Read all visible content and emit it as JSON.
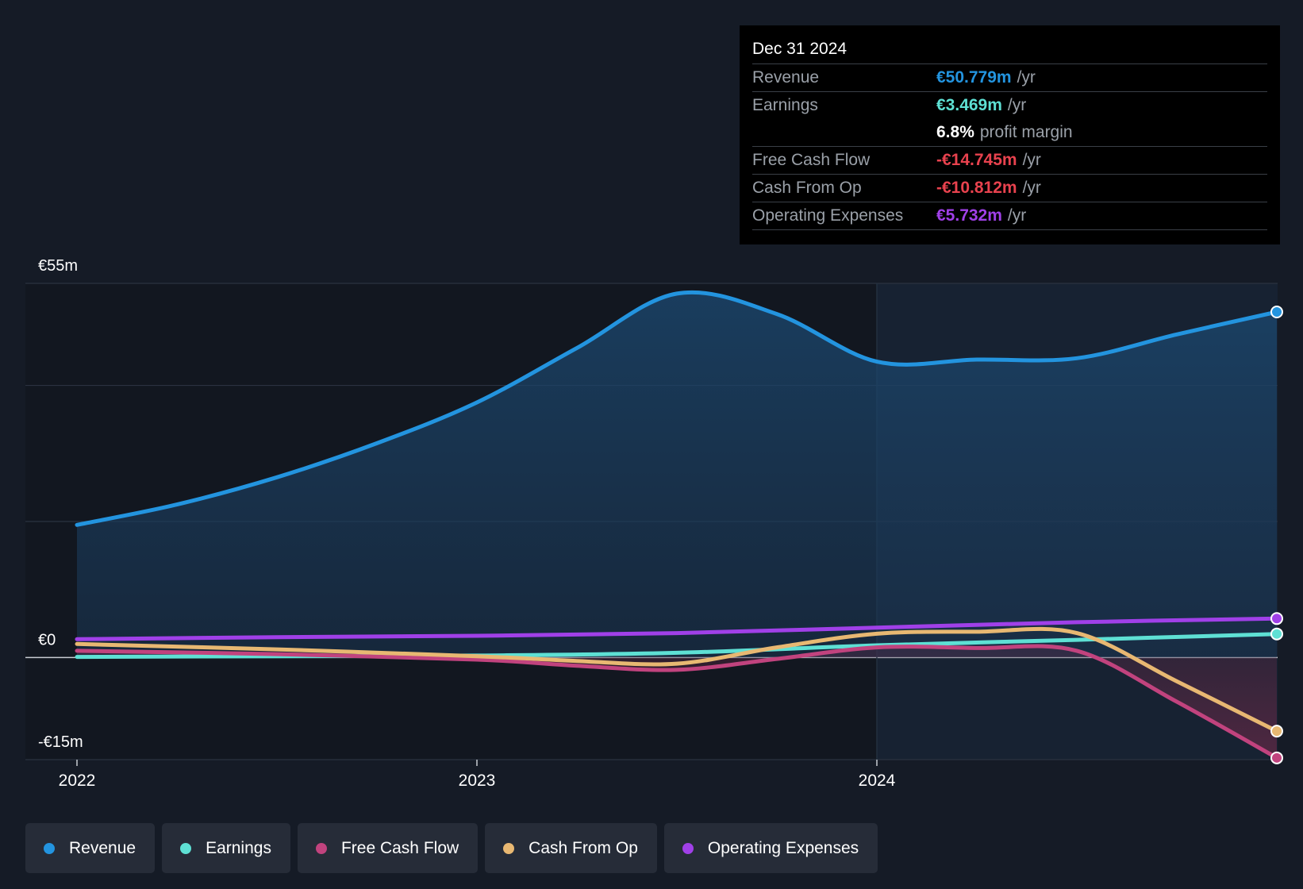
{
  "chart_data": {
    "type": "line",
    "x_ticks": [
      "2022",
      "2023",
      "2024"
    ],
    "x_range": [
      2022.0,
      2025.0
    ],
    "y_tick_labels": [
      {
        "value": 55,
        "label": "€55m"
      },
      {
        "value": 0,
        "label": "€0"
      },
      {
        "value": -15,
        "label": "-€15m"
      }
    ],
    "ylim": [
      -15,
      55
    ],
    "gridlines": [
      55,
      40,
      20,
      0,
      -15
    ],
    "forecast_start": 2024.0,
    "series": [
      {
        "name": "Revenue",
        "color": "#2394df",
        "fill": true,
        "points": [
          [
            2022.0,
            19.5
          ],
          [
            2022.25,
            22.5
          ],
          [
            2022.5,
            26.5
          ],
          [
            2022.75,
            31.5
          ],
          [
            2023.0,
            37.5
          ],
          [
            2023.25,
            45.5
          ],
          [
            2023.5,
            53.5
          ],
          [
            2023.75,
            50.5
          ],
          [
            2024.0,
            43.5
          ],
          [
            2024.25,
            43.8
          ],
          [
            2024.5,
            44.0
          ],
          [
            2024.75,
            47.5
          ],
          [
            2025.0,
            50.8
          ]
        ]
      },
      {
        "name": "Earnings",
        "color": "#5ee0d4",
        "points": [
          [
            2022.0,
            0.1
          ],
          [
            2022.5,
            0.2
          ],
          [
            2023.0,
            0.3
          ],
          [
            2023.5,
            0.7
          ],
          [
            2024.0,
            1.8
          ],
          [
            2024.5,
            2.6
          ],
          [
            2025.0,
            3.469
          ]
        ]
      },
      {
        "name": "Free Cash Flow",
        "color": "#c1437e",
        "points": [
          [
            2022.0,
            1.0
          ],
          [
            2022.5,
            0.5
          ],
          [
            2023.0,
            -0.3
          ],
          [
            2023.25,
            -1.2
          ],
          [
            2023.5,
            -1.8
          ],
          [
            2023.75,
            -0.2
          ],
          [
            2024.0,
            1.5
          ],
          [
            2024.25,
            1.4
          ],
          [
            2024.5,
            1.0
          ],
          [
            2024.75,
            -6.5
          ],
          [
            2025.0,
            -14.745
          ]
        ]
      },
      {
        "name": "Cash From Op",
        "color": "#e8b872",
        "points": [
          [
            2022.0,
            2.0
          ],
          [
            2022.5,
            1.2
          ],
          [
            2023.0,
            0.2
          ],
          [
            2023.25,
            -0.5
          ],
          [
            2023.5,
            -0.9
          ],
          [
            2023.75,
            1.5
          ],
          [
            2024.0,
            3.5
          ],
          [
            2024.25,
            3.8
          ],
          [
            2024.5,
            3.6
          ],
          [
            2024.75,
            -3.5
          ],
          [
            2025.0,
            -10.812
          ]
        ]
      },
      {
        "name": "Operating Expenses",
        "color": "#a040e8",
        "points": [
          [
            2022.0,
            2.7
          ],
          [
            2022.5,
            3.0
          ],
          [
            2023.0,
            3.2
          ],
          [
            2023.5,
            3.6
          ],
          [
            2024.0,
            4.4
          ],
          [
            2024.5,
            5.2
          ],
          [
            2025.0,
            5.732
          ]
        ]
      }
    ]
  },
  "tooltip": {
    "date": "Dec 31 2024",
    "rows": [
      {
        "label": "Revenue",
        "value": "€50.779m",
        "unit": "/yr",
        "color": "#2394df"
      },
      {
        "label": "Earnings",
        "value": "€3.469m",
        "unit": "/yr",
        "color": "#5ee0d4"
      },
      {
        "label": "",
        "value": "6.8%",
        "unit": "profit margin",
        "color": "#ffffff"
      },
      {
        "label": "Free Cash Flow",
        "value": "-€14.745m",
        "unit": "/yr",
        "color": "#e8424e"
      },
      {
        "label": "Cash From Op",
        "value": "-€10.812m",
        "unit": "/yr",
        "color": "#e8424e"
      },
      {
        "label": "Operating Expenses",
        "value": "€5.732m",
        "unit": "/yr",
        "color": "#a040e8"
      }
    ]
  },
  "legend": [
    {
      "label": "Revenue",
      "color": "#2394df"
    },
    {
      "label": "Earnings",
      "color": "#5ee0d4"
    },
    {
      "label": "Free Cash Flow",
      "color": "#c1437e"
    },
    {
      "label": "Cash From Op",
      "color": "#e8b872"
    },
    {
      "label": "Operating Expenses",
      "color": "#a040e8"
    }
  ]
}
